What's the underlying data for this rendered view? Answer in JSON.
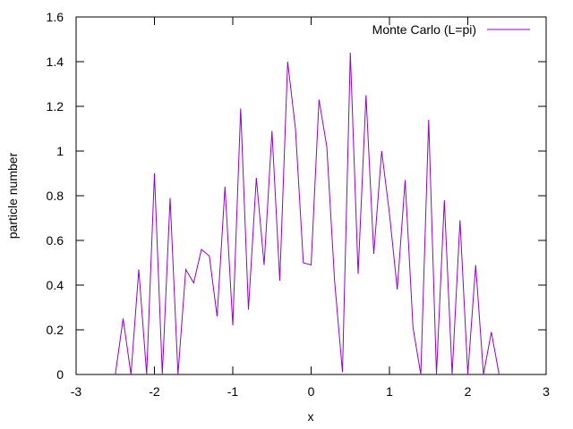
{
  "chart_data": {
    "type": "line",
    "xlabel": "x",
    "ylabel": "particle number",
    "xlim": [
      -3,
      3
    ],
    "ylim": [
      0,
      1.6
    ],
    "xticks": [
      -3,
      -2,
      -1,
      0,
      1,
      2,
      3
    ],
    "yticks": [
      0,
      0.2,
      0.4,
      0.6,
      0.8,
      1,
      1.2,
      1.4,
      1.6
    ],
    "xtick_labels": [
      "-3",
      "-2",
      "-1",
      "0",
      "1",
      "2",
      "3"
    ],
    "ytick_labels": [
      "0",
      "0.2",
      "0.4",
      "0.6",
      "0.8",
      "1",
      "1.2",
      "1.4",
      "1.6"
    ],
    "grid": false,
    "legend_position": "top-right",
    "series": [
      {
        "name": "Monte Carlo (L=pi)",
        "color": "#9400d3",
        "x": [
          -2.5,
          -2.4,
          -2.3,
          -2.2,
          -2.1,
          -2.0,
          -1.9,
          -1.8,
          -1.7,
          -1.6,
          -1.5,
          -1.4,
          -1.3,
          -1.2,
          -1.1,
          -1.0,
          -0.9,
          -0.8,
          -0.7,
          -0.6,
          -0.5,
          -0.4,
          -0.3,
          -0.2,
          -0.1,
          0.0,
          0.1,
          0.2,
          0.3,
          0.4,
          0.5,
          0.6,
          0.7,
          0.8,
          0.9,
          1.0,
          1.1,
          1.2,
          1.3,
          1.4,
          1.5,
          1.6,
          1.7,
          1.8,
          1.9,
          2.0,
          2.1,
          2.2,
          2.3,
          2.4
        ],
        "y": [
          0.0,
          0.25,
          0.0,
          0.47,
          0.0,
          0.9,
          0.0,
          0.79,
          0.0,
          0.47,
          0.41,
          0.56,
          0.53,
          0.26,
          0.84,
          0.22,
          1.19,
          0.29,
          0.88,
          0.49,
          1.09,
          0.42,
          1.4,
          1.1,
          0.5,
          0.49,
          1.23,
          1.02,
          0.42,
          0.01,
          1.44,
          0.45,
          1.25,
          0.54,
          1.0,
          0.72,
          0.38,
          0.87,
          0.21,
          0.0,
          1.14,
          0.0,
          0.78,
          0.0,
          0.69,
          0.0,
          0.49,
          0.0,
          0.19,
          0.0
        ]
      }
    ]
  }
}
